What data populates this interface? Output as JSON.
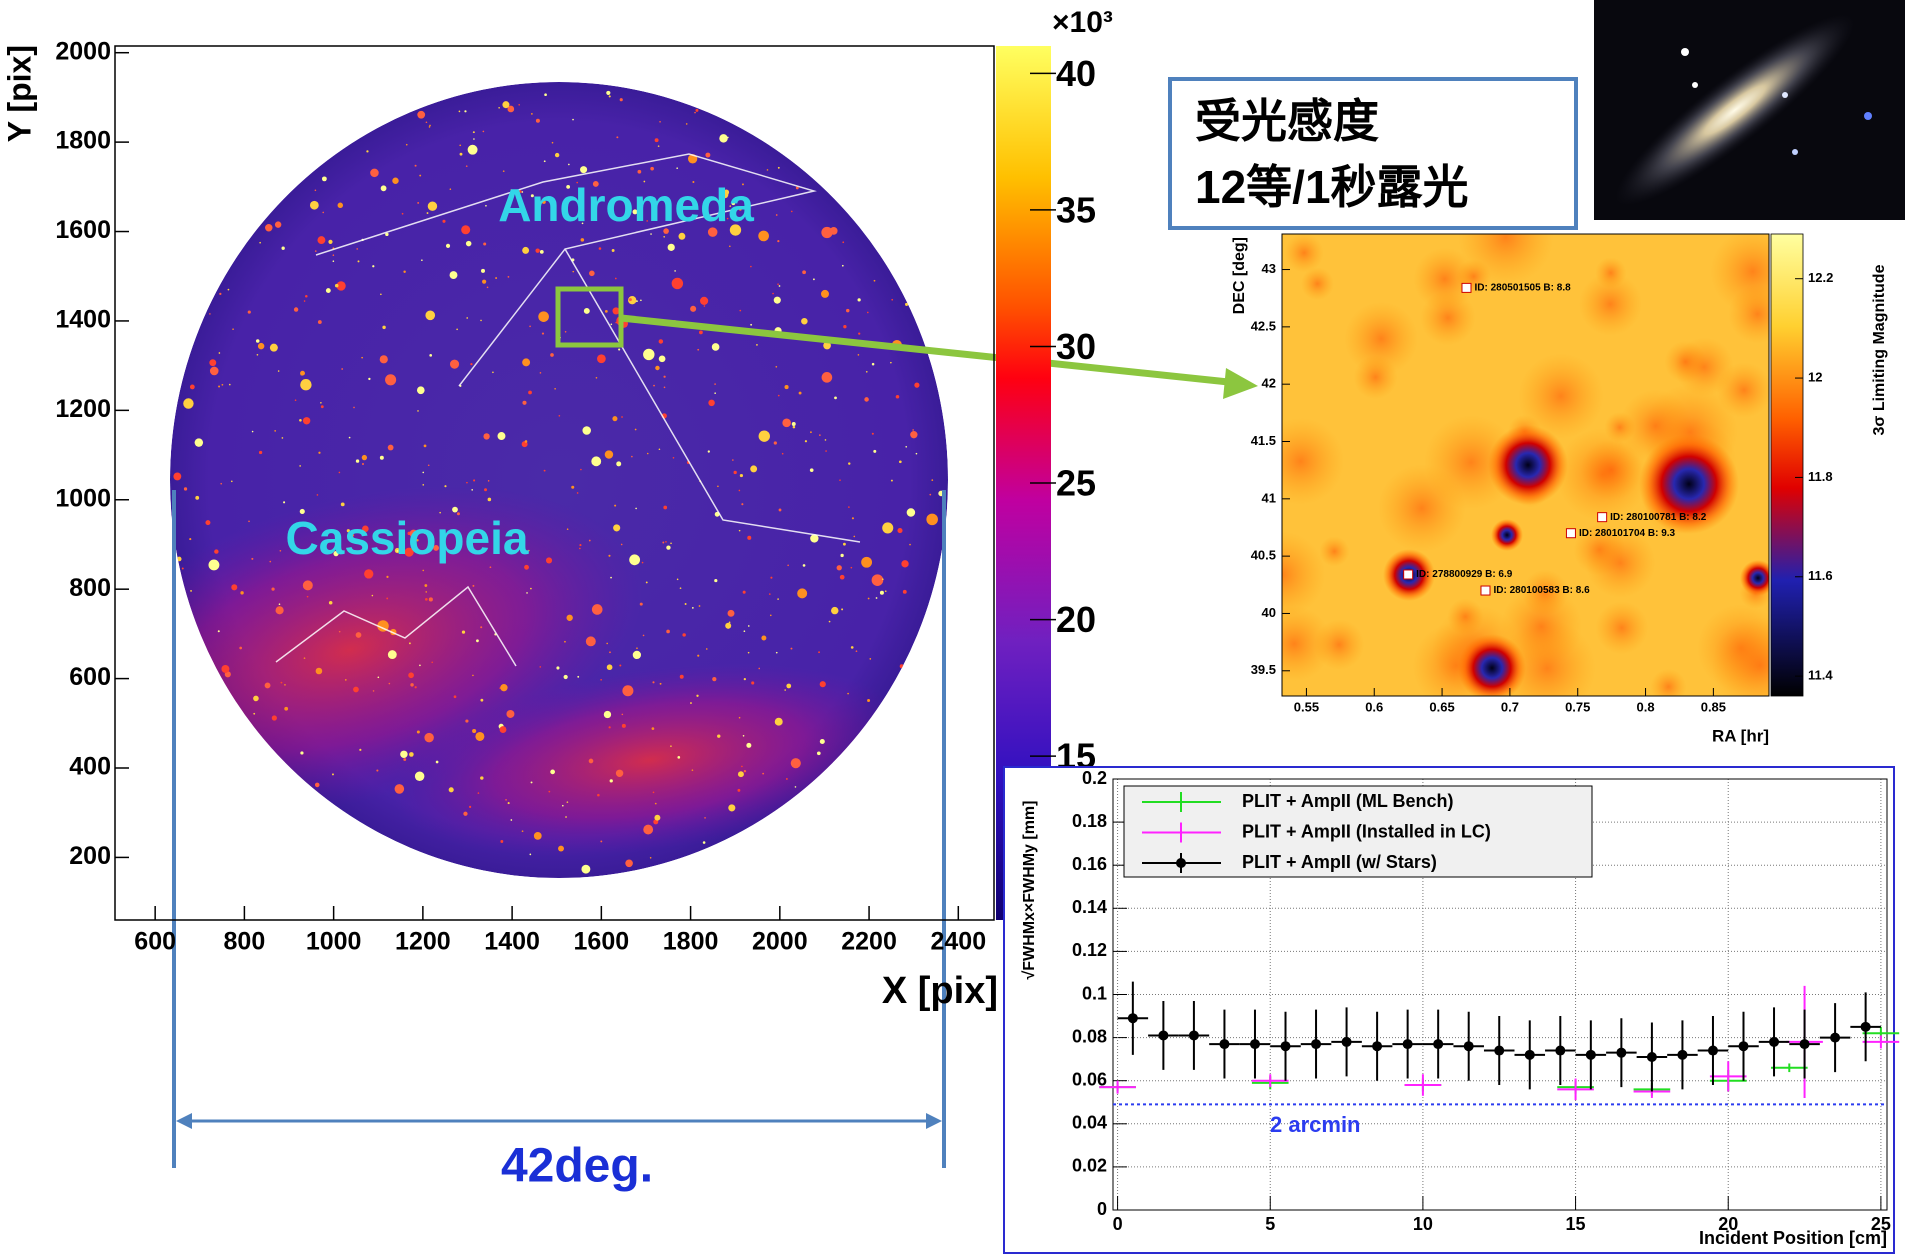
{
  "chart_data": [
    {
      "type": "skymap",
      "x_label": "X [pix]",
      "y_label": "Y [pix]",
      "xlim": [
        510,
        2480
      ],
      "ylim": [
        60,
        2015
      ],
      "xticks": [
        600,
        800,
        1000,
        1200,
        1400,
        1600,
        1800,
        2000,
        2200,
        2400
      ],
      "yticks": [
        200,
        400,
        600,
        800,
        1000,
        1200,
        1400,
        1600,
        1800,
        2000
      ],
      "colorbar": {
        "zlim": [
          9,
          41
        ],
        "zticks": [
          15,
          20,
          25,
          30,
          35,
          40
        ],
        "exponent": "×10³"
      },
      "annotations": [
        "Andromeda",
        "Cassiopeia"
      ]
    },
    {
      "type": "heatmap",
      "x_label": "RA [hr]",
      "y_label": "DEC [deg]",
      "xlim": [
        0.532,
        0.891
      ],
      "ylim": [
        39.28,
        43.31
      ],
      "xticks": [
        0.55,
        0.6,
        0.65,
        0.7,
        0.75,
        0.8,
        0.85
      ],
      "yticks": [
        39.5,
        40,
        40.5,
        41,
        41.5,
        42,
        42.5,
        43
      ],
      "colorbar": {
        "label": "3σ Limiting Magnitude",
        "zlim": [
          11.36,
          12.29
        ],
        "zticks": [
          11.4,
          11.6,
          11.8,
          12,
          12.2
        ]
      },
      "sources": [
        {
          "ra": 0.668,
          "dec": 42.84,
          "label": "ID:  280501505 B: 8.8"
        },
        {
          "ra": 0.768,
          "dec": 40.84,
          "label": "ID:  280100781 B: 8.2"
        },
        {
          "ra": 0.745,
          "dec": 40.7,
          "label": "ID:  280101704 B: 9.3"
        },
        {
          "ra": 0.625,
          "dec": 40.34,
          "label": "ID:  278800929 B: 6.9"
        },
        {
          "ra": 0.682,
          "dec": 40.2,
          "label": "ID:  280100583 B: 8.6"
        }
      ]
    },
    {
      "type": "errorbar",
      "x_label": "Incident Position [cm]",
      "y_label": "√FWHMx×FWHMy [mm]",
      "xlim": [
        -0.15,
        25.2
      ],
      "ylim": [
        0,
        0.2
      ],
      "xticks": [
        0,
        5,
        10,
        15,
        20,
        25
      ],
      "yticks": [
        0,
        0.02,
        0.04,
        0.06,
        0.08,
        0.1,
        0.12,
        0.14,
        0.16,
        0.18,
        0.2
      ],
      "grid": true,
      "legend": "top-left",
      "reference": {
        "value": 0.049,
        "label": "2 arcmin",
        "color": "#2b3cf0"
      },
      "series": [
        {
          "name": "PLIT + AmpII (ML Bench)",
          "color": "#22dd22",
          "x": [
            0,
            5,
            10,
            15,
            17.5,
            20,
            22,
            25
          ],
          "values": [
            0.057,
            0.059,
            0.058,
            0.057,
            0.056,
            0.06,
            0.066,
            0.082
          ],
          "xerr": [
            0.6,
            0.6,
            0.6,
            0.6,
            0.6,
            0.6,
            0.6,
            0.6
          ],
          "yerr": [
            0.002,
            0.003,
            0.003,
            0.003,
            0.003,
            0.005,
            0.002,
            0.003
          ]
        },
        {
          "name": "PLIT + AmpII (Installed in LC)",
          "color": "#ff22ff",
          "x": [
            0,
            5,
            10,
            15,
            17.5,
            20,
            22.5,
            25
          ],
          "values": [
            0.057,
            0.06,
            0.058,
            0.056,
            0.055,
            0.062,
            0.078,
            0.078
          ],
          "xerr": [
            0.6,
            0.6,
            0.6,
            0.6,
            0.6,
            0.6,
            0.6,
            0.6
          ],
          "yerr": [
            0.003,
            0.003,
            0.005,
            0.005,
            0.003,
            0.007,
            0.026,
            0.003
          ]
        },
        {
          "name": "PLIT + AmpII (w/ Stars)",
          "color": "#000000",
          "marker": "circle",
          "x": [
            0.5,
            1.5,
            2.5,
            3.5,
            4.5,
            5.5,
            6.5,
            7.5,
            8.5,
            9.5,
            10.5,
            11.5,
            12.5,
            13.5,
            14.5,
            15.5,
            16.5,
            17.5,
            18.5,
            19.5,
            20.5,
            21.5,
            22.5,
            23.5,
            24.5
          ],
          "values": [
            0.089,
            0.081,
            0.081,
            0.077,
            0.077,
            0.076,
            0.077,
            0.078,
            0.076,
            0.077,
            0.077,
            0.076,
            0.074,
            0.072,
            0.074,
            0.072,
            0.073,
            0.071,
            0.072,
            0.074,
            0.076,
            0.078,
            0.077,
            0.08,
            0.085
          ],
          "xerr": [
            0.5,
            0.5,
            0.5,
            0.5,
            0.5,
            0.5,
            0.5,
            0.5,
            0.5,
            0.5,
            0.5,
            0.5,
            0.5,
            0.5,
            0.5,
            0.5,
            0.5,
            0.5,
            0.5,
            0.5,
            0.5,
            0.5,
            0.5,
            0.5,
            0.5
          ],
          "yerr": [
            0.017,
            0.016,
            0.016,
            0.016,
            0.016,
            0.016,
            0.016,
            0.016,
            0.016,
            0.016,
            0.016,
            0.016,
            0.016,
            0.016,
            0.016,
            0.016,
            0.016,
            0.016,
            0.016,
            0.016,
            0.016,
            0.016,
            0.016,
            0.016,
            0.016
          ]
        }
      ]
    }
  ],
  "text_box": [
    "受光感度",
    "12等/1秒露光"
  ],
  "width_label": "42deg."
}
